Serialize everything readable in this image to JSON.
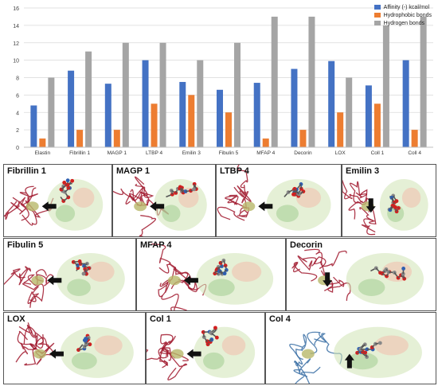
{
  "chart_data": {
    "type": "bar",
    "categories": [
      "Elastin",
      "Fibrillin 1",
      "MAGP 1",
      "LTBP 4",
      "Emilin 3",
      "Fibulin 5",
      "MFAP 4",
      "Decorin",
      "LOX",
      "Coll 1",
      "Coll 4"
    ],
    "series": [
      {
        "name": "Affinity (-) kcal/mol",
        "color": "#4472C4",
        "values": [
          4.8,
          8.8,
          7.3,
          10.0,
          7.5,
          6.6,
          7.4,
          9.0,
          9.9,
          7.1,
          10.0
        ]
      },
      {
        "name": "Hydrophobic bonds",
        "color": "#ED7D31",
        "values": [
          1,
          2,
          2,
          5,
          6,
          4,
          1,
          2,
          4,
          5,
          2
        ]
      },
      {
        "name": "Hydrogen bonds",
        "color": "#A5A5A5",
        "values": [
          8,
          11,
          12,
          12,
          10,
          12,
          15,
          15,
          8,
          14,
          15
        ]
      }
    ],
    "ylim": [
      0,
      16
    ],
    "yticks": [
      0,
      2,
      4,
      6,
      8,
      10,
      12,
      14,
      16
    ],
    "grid": true,
    "legend_position": "top-right"
  },
  "panels": [
    {
      "id": "fibrillin1",
      "label": "Fibrillin 1",
      "protein": "#a0162b",
      "arrow": "left"
    },
    {
      "id": "magp1",
      "label": "MAGP 1",
      "protein": "#a0162b",
      "arrow": "left"
    },
    {
      "id": "ltbp4",
      "label": "LTBP 4",
      "protein": "#a0162b",
      "arrow": "left"
    },
    {
      "id": "emilin3",
      "label": "Emilin 3",
      "protein": "#a0162b",
      "arrow": "down"
    },
    {
      "id": "fibulin5",
      "label": "Fibulin 5",
      "protein": "#a0162b",
      "arrow": "left"
    },
    {
      "id": "mfap4",
      "label": "MFAP 4",
      "protein": "#a0162b",
      "arrow": "left"
    },
    {
      "id": "decorin",
      "label": "Decorin",
      "protein": "#a0162b",
      "arrow": "down"
    },
    {
      "id": "lox",
      "label": "LOX",
      "protein": "#a0162b",
      "arrow": "left"
    },
    {
      "id": "col1",
      "label": "Col 1",
      "protein": "#a0162b",
      "arrow": "left"
    },
    {
      "id": "col4",
      "label": "Col 4",
      "protein": "#3a6ea5",
      "arrow": "up"
    }
  ]
}
